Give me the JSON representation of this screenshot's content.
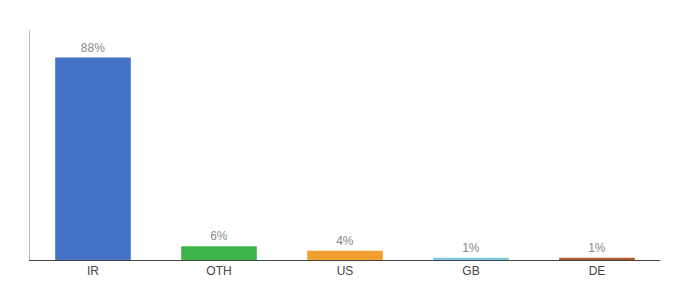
{
  "chart_data": {
    "type": "bar",
    "categories": [
      "IR",
      "OTH",
      "US",
      "GB",
      "DE"
    ],
    "values": [
      88,
      6,
      4,
      1,
      1
    ],
    "value_labels": [
      "88%",
      "6%",
      "4%",
      "1%",
      "1%"
    ],
    "data_labels": true,
    "colors": [
      "#4472c4",
      "#3db34a",
      "#f0a030",
      "#7ec8e3",
      "#b05a2f"
    ],
    "ylim": [
      0,
      100
    ],
    "grid": false,
    "tick_labels": "x"
  }
}
